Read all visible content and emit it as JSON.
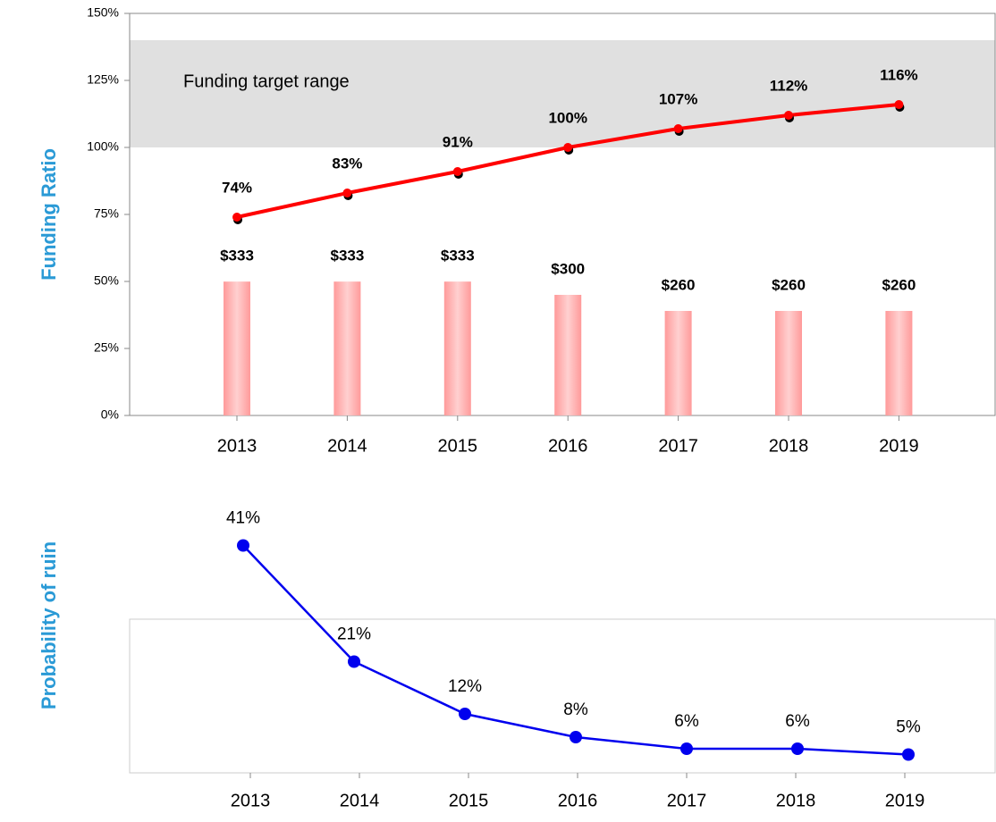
{
  "chart_data": [
    {
      "type": "combo",
      "ylabel": "Funding Ratio",
      "categories": [
        "2013",
        "2014",
        "2015",
        "2016",
        "2017",
        "2018",
        "2019"
      ],
      "ylim": [
        0,
        150
      ],
      "yticks": [
        {
          "value": 0,
          "label": "0%"
        },
        {
          "value": 25,
          "label": "25%"
        },
        {
          "value": 50,
          "label": "50%"
        },
        {
          "value": 75,
          "label": "75%"
        },
        {
          "value": 100,
          "label": "100%"
        },
        {
          "value": 125,
          "label": "125%"
        },
        {
          "value": 150,
          "label": "150%"
        }
      ],
      "y2lim": [
        0,
        1000
      ],
      "target_range": {
        "label": "Funding target range",
        "from": 100,
        "to": 140,
        "color": "#e0e0e0"
      },
      "series": [
        {
          "type": "bar",
          "axis": "y2",
          "color": "#ff9a9a",
          "values": [
            333,
            333,
            333,
            300,
            260,
            260,
            260
          ],
          "value_labels": [
            "$333",
            "$333",
            "$333",
            "$300",
            "$260",
            "$260",
            "$260"
          ]
        },
        {
          "type": "line",
          "color": "#ff0000",
          "values": [
            74,
            83,
            91,
            100,
            107,
            112,
            116
          ],
          "value_labels": [
            "74%",
            "83%",
            "91%",
            "100%",
            "107%",
            "112%",
            "116%"
          ]
        }
      ]
    },
    {
      "type": "line",
      "ylabel": "Probability of ruin",
      "categories": [
        "2013",
        "2014",
        "2015",
        "2016",
        "2017",
        "2018",
        "2019"
      ],
      "ylim": [
        0,
        45
      ],
      "series": [
        {
          "type": "line",
          "color": "#0000ee",
          "values": [
            41,
            21,
            12,
            8,
            6,
            6,
            5
          ],
          "value_labels": [
            "41%",
            "21%",
            "12%",
            "8%",
            "6%",
            "6%",
            "5%"
          ]
        }
      ]
    }
  ]
}
